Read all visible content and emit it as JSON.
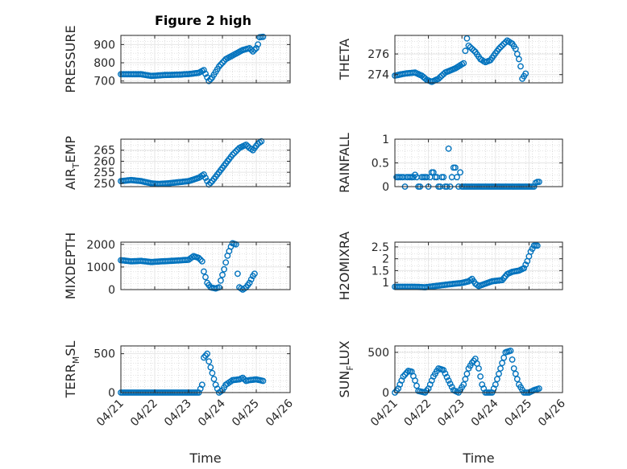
{
  "figure": {
    "title": "Figure 2 high"
  },
  "colors": {
    "marker": "#0072BD",
    "axis": "#262626",
    "grid": "#e6e6e6",
    "minorGrid": "#c8c8c8"
  },
  "chart_data": [
    {
      "type": "scatter",
      "ylabel": {
        "main": "PRESSURE",
        "sub": ""
      },
      "xlim": [
        0,
        5
      ],
      "ylim": [
        690,
        950
      ],
      "yticks": [
        700,
        800,
        900
      ],
      "yticklabels": [
        "700",
        "800",
        "900"
      ],
      "xticks": [],
      "xticklabels": [],
      "xlabel": "",
      "grid": true,
      "minor_grid": true,
      "curve": [
        [
          0,
          737
        ],
        [
          0.6,
          737
        ],
        [
          0.9,
          728
        ],
        [
          1.3,
          733
        ],
        [
          1.7,
          735
        ],
        [
          2.0,
          738
        ],
        [
          2.3,
          745
        ],
        [
          2.45,
          760
        ],
        [
          2.55,
          720
        ],
        [
          2.6,
          700
        ],
        [
          2.7,
          720
        ],
        [
          2.9,
          780
        ],
        [
          3.1,
          820
        ],
        [
          3.4,
          850
        ],
        [
          3.6,
          870
        ],
        [
          3.8,
          880
        ],
        [
          3.9,
          862
        ],
        [
          4.0,
          880
        ],
        [
          4.05,
          900
        ],
        [
          4.1,
          940
        ],
        [
          4.2,
          942
        ]
      ]
    },
    {
      "type": "scatter",
      "ylabel": {
        "main": "THETA",
        "sub": ""
      },
      "xlim": [
        0,
        5
      ],
      "ylim": [
        273.2,
        277.8
      ],
      "yticks": [
        274,
        276
      ],
      "yticklabels": [
        "274",
        "276"
      ],
      "xticks": [],
      "xticklabels": [],
      "xlabel": "",
      "grid": true,
      "minor_grid": true,
      "curve": [
        [
          0,
          273.9
        ],
        [
          0.3,
          274.1
        ],
        [
          0.6,
          274.2
        ],
        [
          0.8,
          273.9
        ],
        [
          0.95,
          273.5
        ],
        [
          1.1,
          273.3
        ],
        [
          1.3,
          273.6
        ],
        [
          1.5,
          274.2
        ],
        [
          1.8,
          274.6
        ],
        [
          2.05,
          275.1
        ],
        [
          2.15,
          277.5
        ],
        [
          2.2,
          276.8
        ],
        [
          2.4,
          276.2
        ],
        [
          2.55,
          275.5
        ],
        [
          2.7,
          275.2
        ],
        [
          2.85,
          275.4
        ],
        [
          3.1,
          276.5
        ],
        [
          3.35,
          277.3
        ],
        [
          3.5,
          277.0
        ],
        [
          3.6,
          276.5
        ],
        [
          3.7,
          275.5
        ],
        [
          3.75,
          274.8
        ],
        [
          3.8,
          273.6
        ],
        [
          3.9,
          274.1
        ]
      ]
    },
    {
      "type": "scatter",
      "ylabel": {
        "main": "AIR",
        "sub": "T",
        "rest": "EMP"
      },
      "xlim": [
        0,
        5
      ],
      "ylim": [
        248.5,
        270
      ],
      "yticks": [
        250,
        255,
        260,
        265
      ],
      "yticklabels": [
        "250",
        "255",
        "260",
        "265"
      ],
      "xticks": [],
      "xticklabels": [],
      "xlabel": "",
      "grid": true,
      "minor_grid": true,
      "curve": [
        [
          0,
          251
        ],
        [
          0.3,
          251.5
        ],
        [
          0.6,
          251
        ],
        [
          0.9,
          250
        ],
        [
          1.1,
          249.7
        ],
        [
          1.4,
          250
        ],
        [
          1.7,
          250.5
        ],
        [
          2.0,
          251
        ],
        [
          2.3,
          252.5
        ],
        [
          2.45,
          254
        ],
        [
          2.55,
          251
        ],
        [
          2.6,
          249.5
        ],
        [
          2.7,
          251
        ],
        [
          2.9,
          255
        ],
        [
          3.1,
          259
        ],
        [
          3.3,
          263
        ],
        [
          3.5,
          266
        ],
        [
          3.7,
          267.5
        ],
        [
          3.8,
          266
        ],
        [
          3.9,
          265
        ],
        [
          4.0,
          267
        ],
        [
          4.05,
          268
        ],
        [
          4.15,
          269
        ]
      ]
    },
    {
      "type": "scatter",
      "ylabel": {
        "main": "RAINFALL",
        "sub": ""
      },
      "xlim": [
        0,
        5
      ],
      "ylim": [
        0,
        1
      ],
      "yticks": [
        0,
        0.5,
        1
      ],
      "yticklabels": [
        "0",
        "0.5",
        "1"
      ],
      "xticks": [],
      "xticklabels": [],
      "xlabel": "",
      "grid": true,
      "minor_grid": true,
      "points": [
        [
          0.05,
          0.2
        ],
        [
          0.1,
          0.2
        ],
        [
          0.15,
          0.2
        ],
        [
          0.2,
          0.2
        ],
        [
          0.25,
          0.2
        ],
        [
          0.3,
          0.0
        ],
        [
          0.35,
          0.2
        ],
        [
          0.4,
          0.2
        ],
        [
          0.45,
          0.2
        ],
        [
          0.5,
          0.2
        ],
        [
          0.55,
          0.2
        ],
        [
          0.6,
          0.25
        ],
        [
          0.65,
          0.2
        ],
        [
          0.7,
          0.0
        ],
        [
          0.75,
          0.0
        ],
        [
          0.8,
          0.2
        ],
        [
          0.85,
          0.2
        ],
        [
          0.9,
          0.2
        ],
        [
          0.95,
          0.2
        ],
        [
          1.0,
          0.0
        ],
        [
          1.05,
          0.2
        ],
        [
          1.1,
          0.3
        ],
        [
          1.15,
          0.3
        ],
        [
          1.2,
          0.2
        ],
        [
          1.25,
          0.2
        ],
        [
          1.3,
          0.0
        ],
        [
          1.35,
          0.0
        ],
        [
          1.4,
          0.2
        ],
        [
          1.45,
          0.2
        ],
        [
          1.5,
          0.0
        ],
        [
          1.55,
          0.0
        ],
        [
          1.6,
          0.8
        ],
        [
          1.65,
          0.0
        ],
        [
          1.7,
          0.2
        ],
        [
          1.75,
          0.4
        ],
        [
          1.8,
          0.4
        ],
        [
          1.85,
          0.2
        ],
        [
          1.9,
          0.0
        ],
        [
          1.95,
          0.3
        ],
        [
          2.0,
          0.0
        ]
      ],
      "zero_run": [
        2.05,
        4.15,
        0.0
      ],
      "tail_points": [
        [
          4.2,
          0.08
        ],
        [
          4.25,
          0.1
        ],
        [
          4.3,
          0.1
        ]
      ]
    },
    {
      "type": "scatter",
      "ylabel": {
        "main": "MIXDEPTH",
        "sub": ""
      },
      "xlim": [
        0,
        5
      ],
      "ylim": [
        0,
        2100
      ],
      "yticks": [
        0,
        1000,
        2000
      ],
      "yticklabels": [
        "0",
        "1000",
        "2000"
      ],
      "xticks": [],
      "xticklabels": [],
      "xlabel": "",
      "grid": true,
      "minor_grid": true,
      "curve": [
        [
          0,
          1300
        ],
        [
          0.3,
          1250
        ],
        [
          0.6,
          1270
        ],
        [
          0.9,
          1220
        ],
        [
          1.2,
          1250
        ],
        [
          1.6,
          1280
        ],
        [
          2.0,
          1320
        ],
        [
          2.15,
          1480
        ],
        [
          2.3,
          1400
        ],
        [
          2.4,
          1250
        ],
        [
          2.45,
          800
        ],
        [
          2.55,
          300
        ],
        [
          2.65,
          100
        ],
        [
          2.8,
          50
        ],
        [
          2.9,
          100
        ],
        [
          2.95,
          400
        ],
        [
          3.05,
          900
        ],
        [
          3.15,
          1500
        ],
        [
          3.25,
          1900
        ],
        [
          3.3,
          2050
        ],
        [
          3.4,
          2000
        ],
        [
          3.45,
          700
        ],
        [
          3.5,
          100
        ],
        [
          3.6,
          0
        ],
        [
          3.7,
          100
        ],
        [
          3.8,
          300
        ],
        [
          3.9,
          600
        ],
        [
          3.95,
          700
        ]
      ]
    },
    {
      "type": "scatter",
      "ylabel": {
        "main": "H2OMIXRA",
        "sub": ""
      },
      "xlim": [
        0,
        5
      ],
      "ylim": [
        0.7,
        2.7
      ],
      "yticks": [
        1,
        1.5,
        2,
        2.5
      ],
      "yticklabels": [
        "1",
        "1.5",
        "2",
        "2.5"
      ],
      "xticks": [],
      "xticklabels": [],
      "xlabel": "",
      "grid": true,
      "minor_grid": true,
      "curve": [
        [
          0,
          0.82
        ],
        [
          0.6,
          0.82
        ],
        [
          0.9,
          0.8
        ],
        [
          1.2,
          0.85
        ],
        [
          1.6,
          0.92
        ],
        [
          2.0,
          0.98
        ],
        [
          2.2,
          1.05
        ],
        [
          2.3,
          1.15
        ],
        [
          2.4,
          0.95
        ],
        [
          2.5,
          0.85
        ],
        [
          2.7,
          0.95
        ],
        [
          2.9,
          1.05
        ],
        [
          3.2,
          1.1
        ],
        [
          3.35,
          1.35
        ],
        [
          3.5,
          1.45
        ],
        [
          3.7,
          1.5
        ],
        [
          3.85,
          1.6
        ],
        [
          3.95,
          1.9
        ],
        [
          4.05,
          2.3
        ],
        [
          4.15,
          2.55
        ],
        [
          4.25,
          2.55
        ]
      ]
    },
    {
      "type": "scatter",
      "ylabel": {
        "main": "TERR",
        "sub": "M",
        "rest": "SL"
      },
      "xlim": [
        0,
        5
      ],
      "ylim": [
        0,
        600
      ],
      "yticks": [
        0,
        500
      ],
      "yticklabels": [
        "0",
        "500"
      ],
      "xticks": [
        0,
        1,
        2,
        3,
        4,
        5
      ],
      "xticklabels": [
        "04/21",
        "04/22",
        "04/23",
        "04/24",
        "04/25",
        "04/26"
      ],
      "xlabel": "Time",
      "grid": true,
      "minor_grid": true,
      "curve": [
        [
          0,
          0
        ],
        [
          2.3,
          0
        ],
        [
          2.4,
          100
        ],
        [
          2.45,
          450
        ],
        [
          2.55,
          500
        ],
        [
          2.6,
          400
        ],
        [
          2.7,
          250
        ],
        [
          2.8,
          100
        ],
        [
          2.9,
          0
        ],
        [
          3.0,
          30
        ],
        [
          3.1,
          100
        ],
        [
          3.3,
          160
        ],
        [
          3.5,
          170
        ],
        [
          3.6,
          190
        ],
        [
          3.7,
          150
        ],
        [
          3.8,
          160
        ],
        [
          4.0,
          170
        ],
        [
          4.2,
          150
        ]
      ]
    },
    {
      "type": "scatter",
      "ylabel": {
        "main": "SUN",
        "sub": "F",
        "rest": "LUX"
      },
      "xlim": [
        0,
        5
      ],
      "ylim": [
        0,
        580
      ],
      "yticks": [
        0,
        500
      ],
      "yticklabels": [
        "0",
        "500"
      ],
      "xticks": [
        0,
        1,
        2,
        3,
        4,
        5
      ],
      "xticklabels": [
        "04/21",
        "04/22",
        "04/23",
        "04/24",
        "04/25",
        "04/26"
      ],
      "xlabel": "Time",
      "grid": true,
      "minor_grid": true,
      "curve": [
        [
          0,
          0
        ],
        [
          0.1,
          50
        ],
        [
          0.25,
          200
        ],
        [
          0.4,
          270
        ],
        [
          0.5,
          260
        ],
        [
          0.6,
          150
        ],
        [
          0.7,
          20
        ],
        [
          0.9,
          0
        ],
        [
          1.0,
          50
        ],
        [
          1.15,
          200
        ],
        [
          1.3,
          300
        ],
        [
          1.45,
          280
        ],
        [
          1.6,
          150
        ],
        [
          1.75,
          30
        ],
        [
          1.9,
          0
        ],
        [
          2.05,
          100
        ],
        [
          2.2,
          300
        ],
        [
          2.3,
          370
        ],
        [
          2.4,
          420
        ],
        [
          2.5,
          300
        ],
        [
          2.6,
          100
        ],
        [
          2.7,
          0
        ],
        [
          2.9,
          0
        ],
        [
          3.0,
          100
        ],
        [
          3.15,
          300
        ],
        [
          3.3,
          500
        ],
        [
          3.45,
          520
        ],
        [
          3.55,
          300
        ],
        [
          3.7,
          100
        ],
        [
          3.85,
          0
        ],
        [
          4.0,
          0
        ],
        [
          4.15,
          30
        ],
        [
          4.3,
          50
        ]
      ]
    }
  ]
}
